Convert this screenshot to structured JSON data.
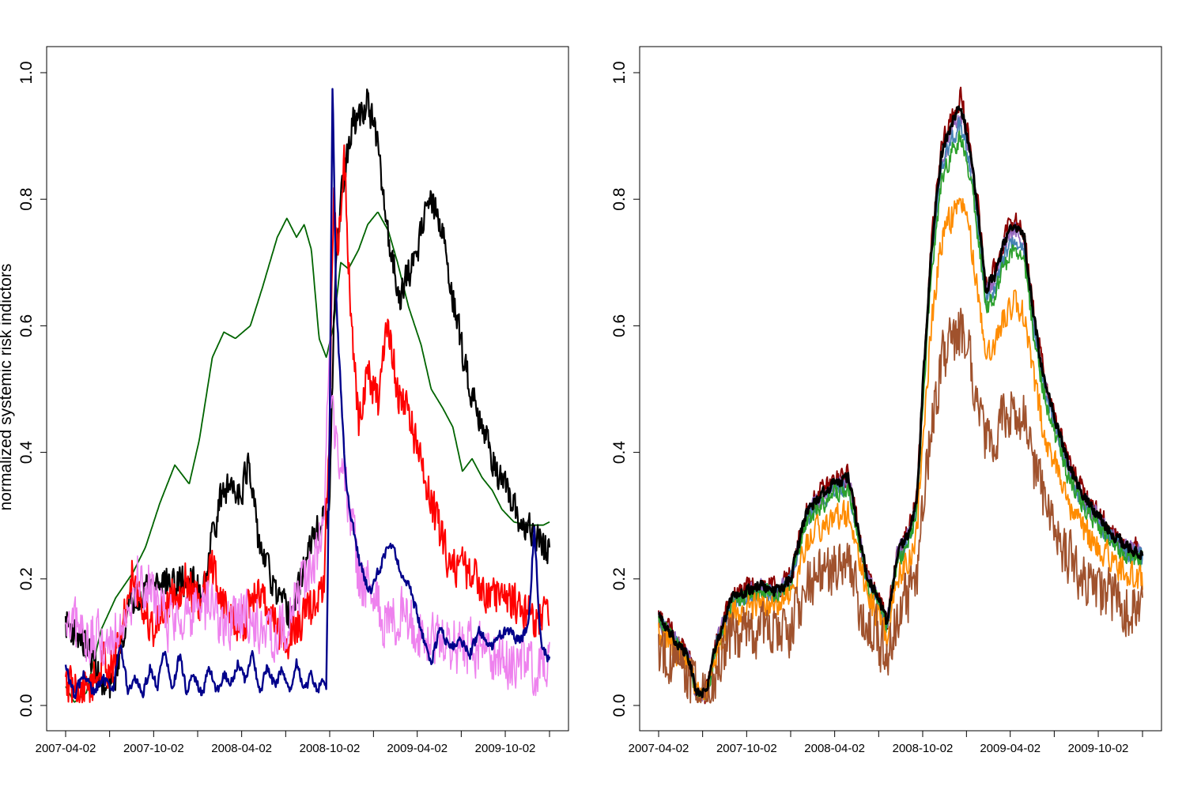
{
  "chart_data": [
    {
      "type": "line",
      "title": "",
      "xlabel": "",
      "ylabel": "normalized systemic risk indictors",
      "ylim": [
        0,
        1
      ],
      "xlim": [
        "2007-04-02",
        "2010-01-02"
      ],
      "grid": false,
      "legend": "none",
      "x_tick_labels": [
        "2007-04-02",
        "2007-10-02",
        "2008-04-02",
        "2008-10-02",
        "2009-04-02",
        "2009-10-02"
      ],
      "y_tick_labels": [
        "0.0",
        "0.2",
        "0.4",
        "0.6",
        "0.8",
        "1.0"
      ],
      "series": [
        {
          "color": "#006400",
          "noise": 0.0,
          "width": 1.8,
          "x": [
            "2007-04-02",
            "2007-04-20",
            "2007-05-15",
            "2007-06-15",
            "2007-07-15",
            "2007-08-20",
            "2007-09-15",
            "2007-10-15",
            "2007-11-15",
            "2007-12-15",
            "2008-01-05",
            "2008-02-01",
            "2008-02-25",
            "2008-03-20",
            "2008-04-20",
            "2008-05-15",
            "2008-06-15",
            "2008-07-05",
            "2008-07-25",
            "2008-08-10",
            "2008-08-25",
            "2008-09-10",
            "2008-09-25",
            "2008-10-10",
            "2008-10-25",
            "2008-11-10",
            "2008-12-01",
            "2008-12-20",
            "2009-01-10",
            "2009-02-01",
            "2009-02-20",
            "2009-03-15",
            "2009-04-10",
            "2009-05-01",
            "2009-05-25",
            "2009-06-15",
            "2009-07-05",
            "2009-07-25",
            "2009-08-15",
            "2009-09-05",
            "2009-09-25",
            "2009-10-20",
            "2009-11-20",
            "2009-12-20",
            "2010-01-02"
          ],
          "y": [
            0.03,
            0.005,
            0.02,
            0.12,
            0.17,
            0.21,
            0.25,
            0.32,
            0.38,
            0.35,
            0.42,
            0.55,
            0.59,
            0.58,
            0.6,
            0.66,
            0.74,
            0.77,
            0.74,
            0.76,
            0.72,
            0.58,
            0.55,
            0.6,
            0.7,
            0.69,
            0.72,
            0.76,
            0.78,
            0.75,
            0.7,
            0.63,
            0.57,
            0.5,
            0.47,
            0.44,
            0.37,
            0.39,
            0.36,
            0.34,
            0.31,
            0.29,
            0.285,
            0.285,
            0.29
          ]
        },
        {
          "color": "#000000",
          "noise": 0.035,
          "width": 2.2,
          "x": [
            "2007-04-02",
            "2007-05-01",
            "2007-06-01",
            "2007-06-20",
            "2007-07-10",
            "2007-08-01",
            "2007-08-20",
            "2007-09-15",
            "2007-10-15",
            "2007-11-15",
            "2007-12-15",
            "2008-01-10",
            "2008-02-01",
            "2008-02-20",
            "2008-03-10",
            "2008-04-01",
            "2008-04-15",
            "2008-05-05",
            "2008-06-01",
            "2008-06-20",
            "2008-07-15",
            "2008-08-10",
            "2008-09-01",
            "2008-09-15",
            "2008-10-01",
            "2008-10-15",
            "2008-11-01",
            "2008-11-20",
            "2008-12-05",
            "2008-12-20",
            "2009-01-10",
            "2009-01-25",
            "2009-02-10",
            "2009-02-25",
            "2009-03-15",
            "2009-04-05",
            "2009-04-20",
            "2009-05-10",
            "2009-06-01",
            "2009-06-20",
            "2009-07-15",
            "2009-08-10",
            "2009-09-01",
            "2009-10-01",
            "2009-11-01",
            "2009-12-01",
            "2010-01-02"
          ],
          "y": [
            0.13,
            0.11,
            0.07,
            0.02,
            0.03,
            0.12,
            0.17,
            0.19,
            0.2,
            0.19,
            0.2,
            0.18,
            0.27,
            0.33,
            0.35,
            0.34,
            0.38,
            0.27,
            0.2,
            0.16,
            0.14,
            0.22,
            0.27,
            0.29,
            0.3,
            0.72,
            0.84,
            0.92,
            0.93,
            0.96,
            0.88,
            0.78,
            0.7,
            0.65,
            0.68,
            0.73,
            0.8,
            0.78,
            0.72,
            0.62,
            0.52,
            0.46,
            0.4,
            0.34,
            0.29,
            0.27,
            0.24
          ]
        },
        {
          "color": "#ff0000",
          "noise": 0.045,
          "width": 2.0,
          "x": [
            "2007-04-02",
            "2007-05-01",
            "2007-06-01",
            "2007-06-20",
            "2007-07-10",
            "2007-08-01",
            "2007-08-20",
            "2007-09-10",
            "2007-10-01",
            "2007-10-20",
            "2007-11-15",
            "2007-12-10",
            "2008-01-05",
            "2008-02-01",
            "2008-03-01",
            "2008-04-01",
            "2008-05-01",
            "2008-06-01",
            "2008-07-01",
            "2008-08-01",
            "2008-09-01",
            "2008-09-20",
            "2008-10-02",
            "2008-10-10",
            "2008-10-20",
            "2008-11-01",
            "2008-11-15",
            "2008-12-01",
            "2008-12-20",
            "2009-01-10",
            "2009-02-01",
            "2009-02-20",
            "2009-03-15",
            "2009-04-05",
            "2009-05-01",
            "2009-06-01",
            "2009-07-01",
            "2009-08-01",
            "2009-09-01",
            "2009-10-01",
            "2009-11-01",
            "2009-12-01",
            "2010-01-02"
          ],
          "y": [
            0.03,
            0.02,
            0.04,
            0.07,
            0.06,
            0.13,
            0.22,
            0.15,
            0.12,
            0.15,
            0.18,
            0.2,
            0.15,
            0.22,
            0.15,
            0.12,
            0.18,
            0.15,
            0.1,
            0.13,
            0.16,
            0.19,
            0.45,
            0.8,
            0.72,
            0.88,
            0.6,
            0.45,
            0.52,
            0.48,
            0.6,
            0.5,
            0.46,
            0.4,
            0.32,
            0.24,
            0.22,
            0.2,
            0.18,
            0.17,
            0.16,
            0.14,
            0.14
          ]
        },
        {
          "color": "#ee82ee",
          "noise": 0.06,
          "width": 1.6,
          "x": [
            "2007-04-02",
            "2007-05-01",
            "2007-06-01",
            "2007-07-01",
            "2007-08-01",
            "2007-09-01",
            "2007-10-01",
            "2007-11-01",
            "2007-12-01",
            "2008-01-01",
            "2008-02-01",
            "2008-03-01",
            "2008-04-01",
            "2008-05-01",
            "2008-06-01",
            "2008-07-01",
            "2008-08-01",
            "2008-09-01",
            "2008-09-20",
            "2008-10-01",
            "2008-10-10",
            "2008-10-25",
            "2008-11-10",
            "2008-12-01",
            "2009-01-01",
            "2009-02-01",
            "2009-03-01",
            "2009-04-01",
            "2009-05-01",
            "2009-06-01",
            "2009-07-01",
            "2009-08-01",
            "2009-09-01",
            "2009-10-01",
            "2009-11-01",
            "2009-12-01",
            "2010-01-02"
          ],
          "y": [
            0.11,
            0.12,
            0.1,
            0.1,
            0.15,
            0.2,
            0.18,
            0.13,
            0.15,
            0.14,
            0.16,
            0.12,
            0.15,
            0.13,
            0.11,
            0.12,
            0.19,
            0.23,
            0.27,
            0.55,
            0.45,
            0.38,
            0.32,
            0.2,
            0.17,
            0.12,
            0.15,
            0.12,
            0.1,
            0.1,
            0.09,
            0.09,
            0.08,
            0.07,
            0.07,
            0.06,
            0.07
          ]
        },
        {
          "color": "#00008b",
          "noise": 0.012,
          "width": 2.4,
          "x": [
            "2007-04-02",
            "2007-04-20",
            "2007-05-10",
            "2007-05-30",
            "2007-06-20",
            "2007-07-10",
            "2007-07-25",
            "2007-08-10",
            "2007-08-25",
            "2007-09-10",
            "2007-09-25",
            "2007-10-10",
            "2007-10-25",
            "2007-11-10",
            "2007-11-25",
            "2007-12-10",
            "2007-12-25",
            "2008-01-10",
            "2008-01-25",
            "2008-02-10",
            "2008-02-25",
            "2008-03-10",
            "2008-03-25",
            "2008-04-10",
            "2008-04-25",
            "2008-05-10",
            "2008-05-25",
            "2008-06-10",
            "2008-06-25",
            "2008-07-10",
            "2008-07-25",
            "2008-08-10",
            "2008-08-25",
            "2008-09-05",
            "2008-09-15",
            "2008-09-25",
            "2008-10-02",
            "2008-10-08",
            "2008-10-15",
            "2008-10-25",
            "2008-11-05",
            "2008-11-20",
            "2008-12-05",
            "2008-12-25",
            "2009-01-15",
            "2009-02-01",
            "2009-02-15",
            "2009-03-01",
            "2009-03-20",
            "2009-04-10",
            "2009-05-01",
            "2009-05-20",
            "2009-06-10",
            "2009-07-01",
            "2009-07-20",
            "2009-08-10",
            "2009-09-01",
            "2009-09-20",
            "2009-10-10",
            "2009-11-01",
            "2009-11-20",
            "2009-12-01",
            "2009-12-15",
            "2010-01-02"
          ],
          "y": [
            0.06,
            0.015,
            0.05,
            0.02,
            0.04,
            0.03,
            0.095,
            0.02,
            0.04,
            0.02,
            0.06,
            0.03,
            0.09,
            0.02,
            0.08,
            0.02,
            0.05,
            0.015,
            0.06,
            0.02,
            0.05,
            0.03,
            0.07,
            0.04,
            0.08,
            0.02,
            0.06,
            0.03,
            0.06,
            0.02,
            0.07,
            0.02,
            0.05,
            0.02,
            0.04,
            0.03,
            0.45,
            0.99,
            0.65,
            0.5,
            0.35,
            0.28,
            0.22,
            0.18,
            0.22,
            0.25,
            0.24,
            0.21,
            0.18,
            0.12,
            0.07,
            0.12,
            0.09,
            0.1,
            0.08,
            0.12,
            0.09,
            0.11,
            0.12,
            0.1,
            0.13,
            0.28,
            0.1,
            0.07
          ]
        }
      ]
    },
    {
      "type": "line",
      "title": "",
      "xlabel": "",
      "ylabel": "",
      "ylim": [
        0,
        1
      ],
      "xlim": [
        "2007-04-02",
        "2010-01-02"
      ],
      "grid": false,
      "legend": "none",
      "x_tick_labels": [
        "2007-04-02",
        "2007-10-02",
        "2008-04-02",
        "2008-10-02",
        "2009-04-02",
        "2009-10-02"
      ],
      "y_tick_labels": [
        "0.0",
        "0.2",
        "0.4",
        "0.6",
        "0.8",
        "1.0"
      ],
      "base_x": [
        "2007-04-02",
        "2007-05-01",
        "2007-06-01",
        "2007-06-20",
        "2007-07-10",
        "2007-08-01",
        "2007-09-01",
        "2007-10-01",
        "2007-11-01",
        "2007-12-01",
        "2008-01-01",
        "2008-02-01",
        "2008-03-01",
        "2008-04-01",
        "2008-05-01",
        "2008-05-20",
        "2008-06-10",
        "2008-07-01",
        "2008-07-20",
        "2008-08-10",
        "2008-09-01",
        "2008-09-20",
        "2008-10-02",
        "2008-10-20",
        "2008-11-10",
        "2008-12-01",
        "2008-12-20",
        "2009-01-10",
        "2009-01-25",
        "2009-02-10",
        "2009-03-01",
        "2009-03-20",
        "2009-04-10",
        "2009-05-01",
        "2009-05-20",
        "2009-06-10",
        "2009-07-01",
        "2009-08-01",
        "2009-09-01",
        "2009-10-01",
        "2009-11-01",
        "2009-12-01",
        "2010-01-02"
      ],
      "base_y": [
        0.14,
        0.11,
        0.08,
        0.02,
        0.02,
        0.1,
        0.17,
        0.18,
        0.19,
        0.18,
        0.2,
        0.3,
        0.33,
        0.35,
        0.36,
        0.28,
        0.2,
        0.17,
        0.13,
        0.24,
        0.27,
        0.32,
        0.5,
        0.72,
        0.87,
        0.92,
        0.95,
        0.87,
        0.78,
        0.66,
        0.68,
        0.73,
        0.76,
        0.74,
        0.62,
        0.52,
        0.46,
        0.38,
        0.33,
        0.3,
        0.27,
        0.25,
        0.24
      ],
      "series": [
        {
          "color": "#8b0000",
          "scale": 1.01,
          "noise": 0.025,
          "width": 2.0
        },
        {
          "color": "#9467bd",
          "scale": 0.99,
          "noise": 0.02,
          "width": 1.8
        },
        {
          "color": "#4682b4",
          "scale": 0.97,
          "noise": 0.02,
          "width": 1.8
        },
        {
          "color": "#2ca02c",
          "scale": 0.95,
          "noise": 0.02,
          "width": 1.8
        },
        {
          "color": "#ff8c00",
          "scale": 0.84,
          "noise": 0.03,
          "width": 1.8
        },
        {
          "color": "#a0522d",
          "scale": 0.62,
          "noise": 0.06,
          "width": 1.8
        },
        {
          "color": "#000000",
          "scale": 1.0,
          "noise": 0.012,
          "width": 3.0
        }
      ]
    }
  ]
}
